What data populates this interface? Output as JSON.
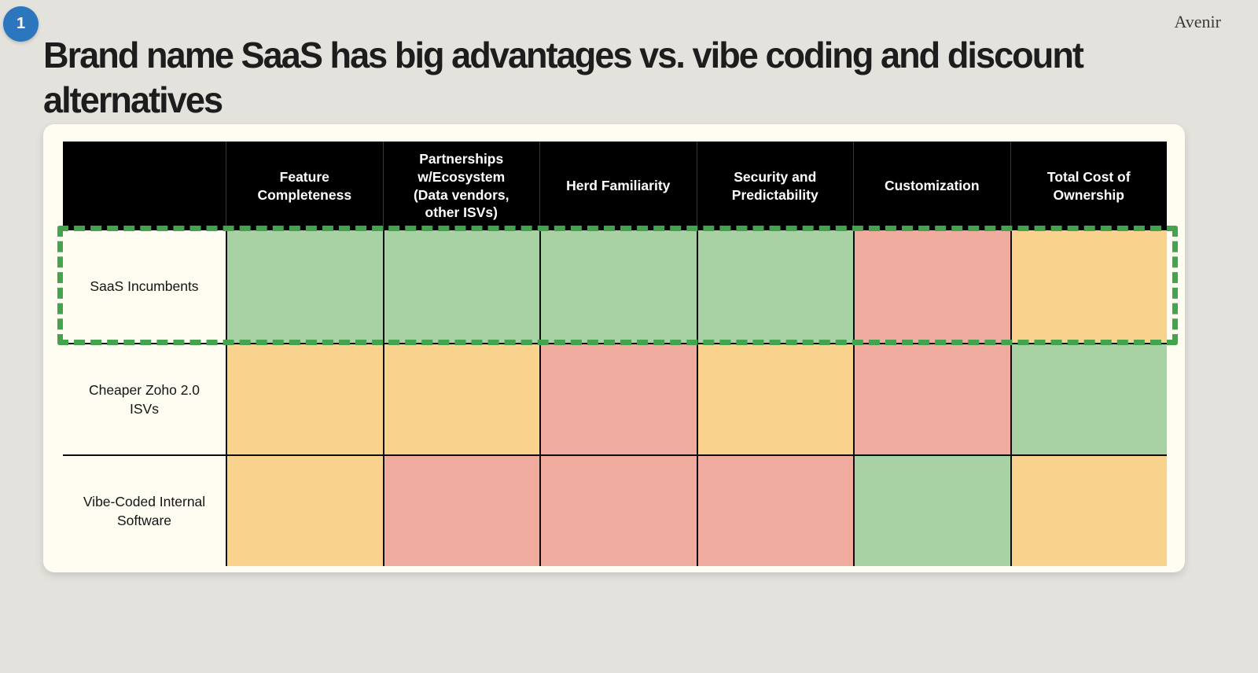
{
  "page": {
    "background": "#e4e2dd",
    "badge": {
      "number": "1",
      "color": "#2b76bd"
    },
    "brand": "Avenir",
    "title_lines": [
      "Brand name SaaS has big advantages vs. vibe coding and discount",
      "alternatives"
    ]
  },
  "matrix": {
    "legend_colors": {
      "good": "#a8d2a3",
      "medium": "#f9d28d",
      "bad": "#efab9d"
    },
    "highlight_color": "#44a34f",
    "header_background": "#000000",
    "columns": [
      "Feature Completeness",
      "Partnerships w/Ecosystem (Data vendors, other ISVs)",
      "Herd Familiarity",
      "Security and Predictability",
      "Customization",
      "Total Cost of Ownership"
    ],
    "rows": [
      {
        "label": "SaaS Incumbents",
        "highlighted": true,
        "ratings": [
          "good",
          "good",
          "good",
          "good",
          "bad",
          "medium"
        ]
      },
      {
        "label": "Cheaper Zoho 2.0 ISVs",
        "highlighted": false,
        "ratings": [
          "medium",
          "medium",
          "bad",
          "medium",
          "bad",
          "good"
        ]
      },
      {
        "label": "Vibe-Coded Internal Software",
        "highlighted": false,
        "ratings": [
          "medium",
          "bad",
          "bad",
          "bad",
          "good",
          "medium"
        ]
      }
    ]
  }
}
